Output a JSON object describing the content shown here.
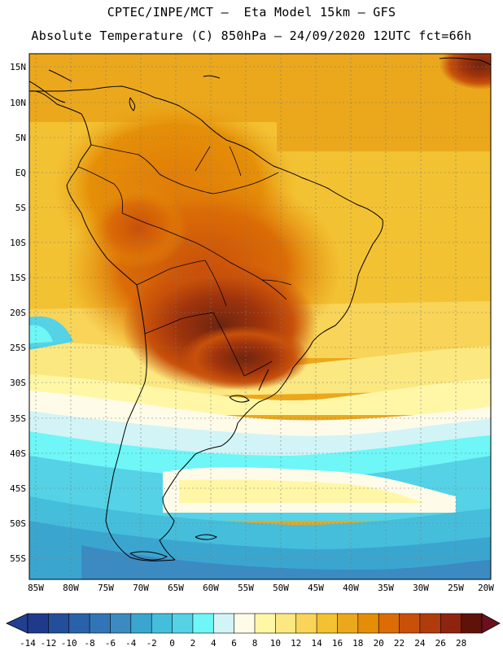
{
  "title_line1": "CPTEC/INPE/MCT –  Eta Model 15km – GFS",
  "title_line2": "Absolute Temperature (C) 850hPa – 24/09/2020 12UTC fct=66h",
  "lat_labels": [
    "15N",
    "10N",
    "5N",
    "EQ",
    "5S",
    "10S",
    "15S",
    "20S",
    "25S",
    "30S",
    "35S",
    "40S",
    "45S",
    "50S",
    "55S"
  ],
  "lon_labels": [
    "85W",
    "80W",
    "75W",
    "70W",
    "65W",
    "60W",
    "55W",
    "50W",
    "45W",
    "40W",
    "35W",
    "30W",
    "25W",
    "20W"
  ],
  "colorbar": {
    "labels": [
      "-14",
      "-12",
      "-10",
      "-8",
      "-6",
      "-4",
      "-2",
      "0",
      "2",
      "4",
      "6",
      "8",
      "10",
      "12",
      "14",
      "16",
      "18",
      "20",
      "22",
      "24",
      "26",
      "28"
    ],
    "colors": [
      "#1f3a8a",
      "#234e9a",
      "#2a62aa",
      "#3275b6",
      "#3b8bc2",
      "#3aa6cf",
      "#45bedc",
      "#55d2e6",
      "#6ff6f6",
      "#d2f4f6",
      "#fffbe9",
      "#fff7a6",
      "#fbe880",
      "#f8d458",
      "#f3c233",
      "#eba81c",
      "#e48e08",
      "#db6c06",
      "#c85009",
      "#b03c0c",
      "#8e2410",
      "#5e1208"
    ],
    "low_color": "#233f8f",
    "high_color": "#6c0f1e"
  }
}
